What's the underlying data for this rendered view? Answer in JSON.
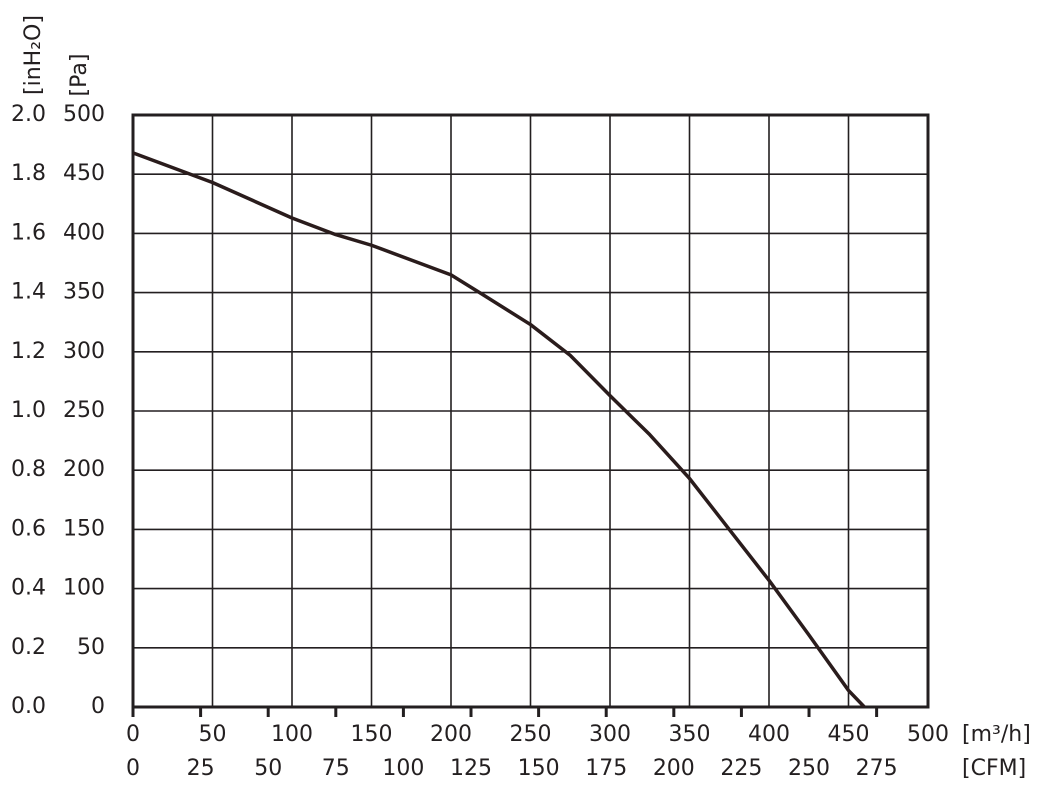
{
  "chart_data": {
    "type": "line",
    "x_label": "[m³/h]",
    "x2_label": "[CFM]",
    "y_label": "[Pa]",
    "y2_label": "[inH₂O]",
    "x": [
      0,
      50,
      100,
      127.5,
      150,
      200,
      218,
      250,
      275,
      300,
      325,
      350,
      375,
      400,
      425,
      450,
      460
    ],
    "series": [
      {
        "name": "Pa",
        "color": "#2a1c1c",
        "values": [
          468,
          443,
          413,
          399,
          390,
          365,
          350,
          323,
          297,
          263,
          230,
          193,
          150,
          107,
          61,
          14,
          0
        ]
      }
    ],
    "xlim": [
      0,
      500
    ],
    "xticks": [
      0,
      50,
      100,
      150,
      200,
      250,
      300,
      350,
      400,
      450,
      500
    ],
    "x2lim": [
      0,
      294
    ],
    "x2ticks": [
      0,
      25,
      50,
      75,
      100,
      125,
      150,
      175,
      200,
      225,
      250,
      275
    ],
    "ylim": [
      0,
      500
    ],
    "yticks": [
      0,
      50,
      100,
      150,
      200,
      250,
      300,
      350,
      400,
      450,
      500
    ],
    "y2lim": [
      0,
      2.0
    ],
    "y2ticks": [
      {
        "value": 0,
        "label": "0.0"
      },
      0.2,
      0.4,
      0.6,
      0.8,
      {
        "value": 1,
        "label": "1.0"
      },
      1.2,
      1.4,
      1.6,
      1.8,
      {
        "value": 2,
        "label": "2.0"
      }
    ],
    "grid": true
  }
}
